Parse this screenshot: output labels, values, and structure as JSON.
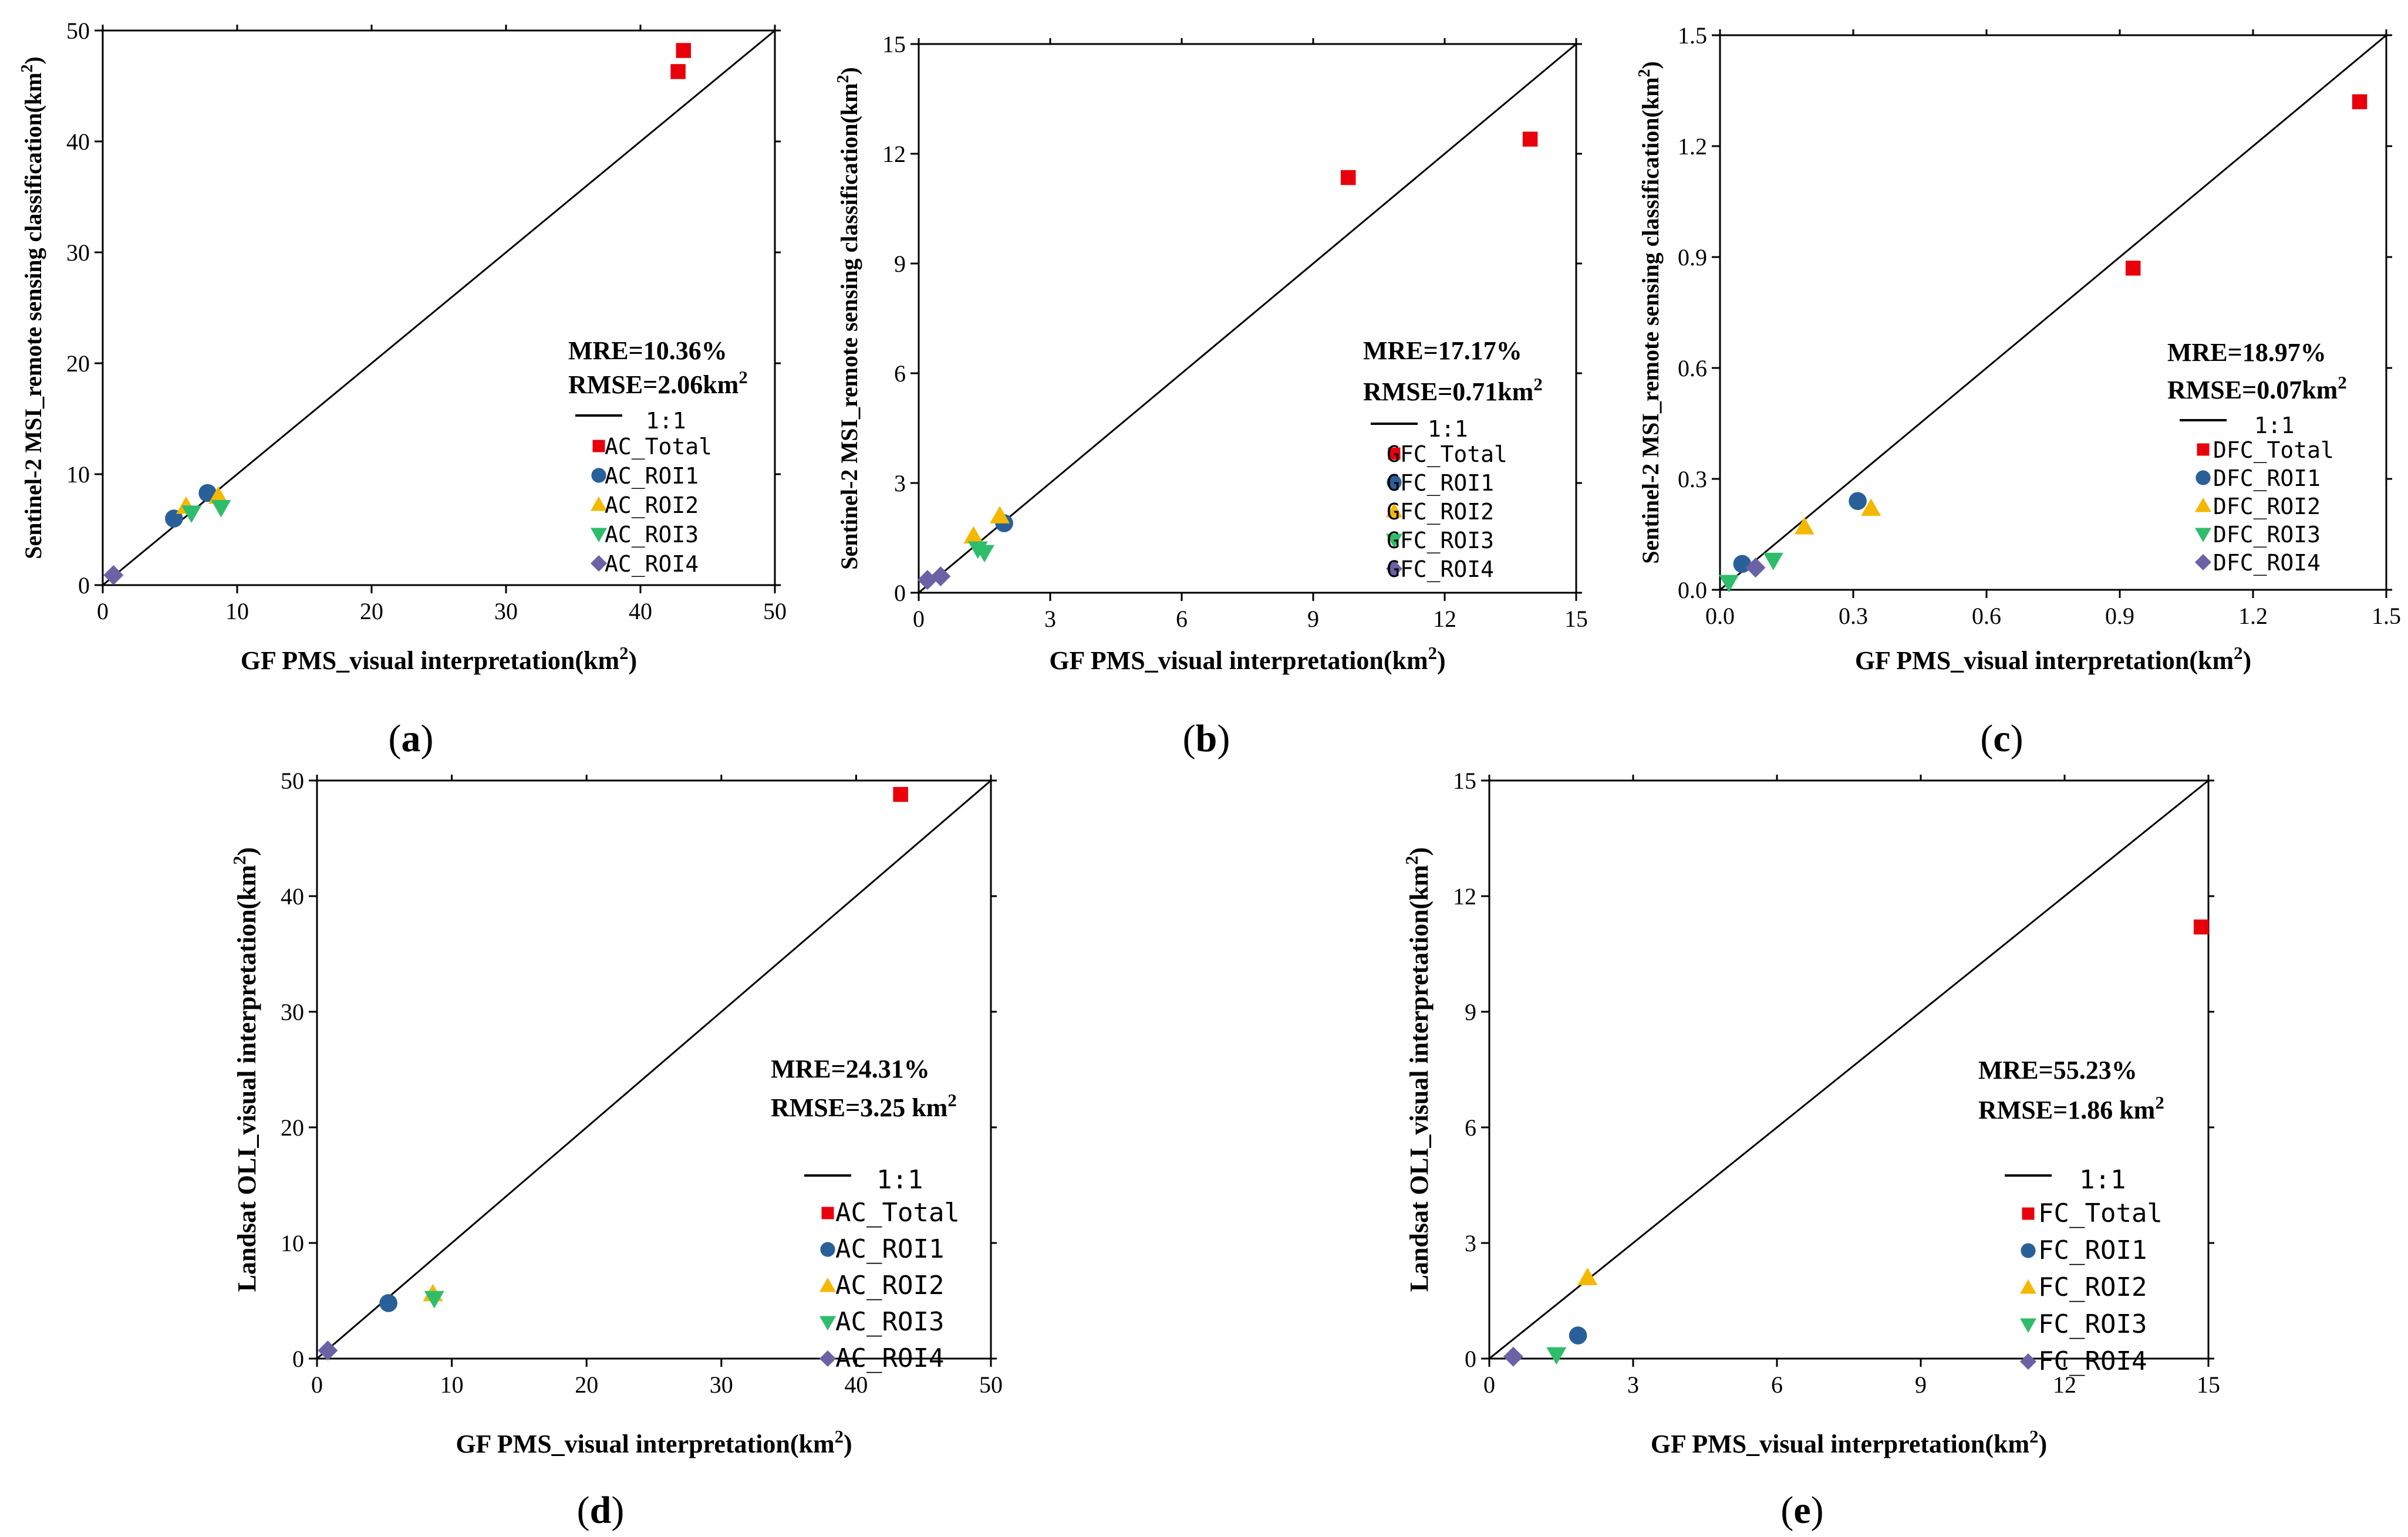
{
  "chart_data": [
    {
      "id": "a",
      "panel_label": "a",
      "type": "scatter",
      "xlabel": "GF PMS_visual interpretation(km²)",
      "ylabel": "Sentinel-2 MSI_remote sensing classification(km²)",
      "xlim": [
        0,
        50
      ],
      "ylim": [
        0,
        50
      ],
      "xticks": [
        "0",
        "10",
        "20",
        "30",
        "40",
        "50"
      ],
      "yticks": [
        "0",
        "10",
        "20",
        "30",
        "40",
        "50"
      ],
      "mre": "MRE=10.36%",
      "rmse": "RMSE=2.06km²",
      "line_label": "1:1",
      "series": [
        {
          "name": "AC_Total",
          "marker": "square",
          "color": "#e8000b",
          "points": [
            [
              43.2,
              48.2
            ],
            [
              42.8,
              46.3
            ]
          ]
        },
        {
          "name": "AC_ROI1",
          "marker": "circle",
          "color": "#2a6099",
          "points": [
            [
              5.3,
              6.0
            ],
            [
              7.8,
              8.3
            ]
          ]
        },
        {
          "name": "AC_ROI2",
          "marker": "triangle-up",
          "color": "#f5b800",
          "points": [
            [
              6.2,
              7.1
            ],
            [
              8.6,
              8.0
            ]
          ]
        },
        {
          "name": "AC_ROI3",
          "marker": "triangle-down",
          "color": "#2ebd6b",
          "points": [
            [
              6.6,
              6.5
            ],
            [
              8.8,
              7.0
            ]
          ]
        },
        {
          "name": "AC_ROI4",
          "marker": "diamond",
          "color": "#6b62a6",
          "points": [
            [
              0.8,
              0.9
            ]
          ]
        }
      ]
    },
    {
      "id": "b",
      "panel_label": "b",
      "type": "scatter",
      "xlabel": "GF PMS_visual interpretation(km²)",
      "ylabel": "Sentinel-2 MSI_remote sensing classification(km²)",
      "xlim": [
        0,
        15
      ],
      "ylim": [
        0,
        15
      ],
      "xticks": [
        "0",
        "3",
        "6",
        "9",
        "12",
        "15"
      ],
      "yticks": [
        "0",
        "3",
        "6",
        "9",
        "12",
        "15"
      ],
      "mre": "MRE=17.17%",
      "rmse": "RMSE=0.71km²",
      "line_label": "1:1",
      "series": [
        {
          "name": "GFC_Total",
          "marker": "square",
          "color": "#e8000b",
          "points": [
            [
              9.8,
              11.35
            ],
            [
              13.95,
              12.4
            ]
          ]
        },
        {
          "name": "GFC_ROI1",
          "marker": "circle",
          "color": "#2a6099",
          "points": [
            [
              1.95,
              1.9
            ]
          ]
        },
        {
          "name": "GFC_ROI2",
          "marker": "triangle-up",
          "color": "#f5b800",
          "points": [
            [
              1.25,
              1.55
            ],
            [
              1.85,
              2.1
            ]
          ]
        },
        {
          "name": "GFC_ROI3",
          "marker": "triangle-down",
          "color": "#2ebd6b",
          "points": [
            [
              1.35,
              1.2
            ],
            [
              1.5,
              1.1
            ]
          ]
        },
        {
          "name": "GFC_ROI4",
          "marker": "diamond",
          "color": "#6b62a6",
          "points": [
            [
              0.2,
              0.35
            ],
            [
              0.5,
              0.45
            ]
          ]
        }
      ]
    },
    {
      "id": "c",
      "panel_label": "c",
      "type": "scatter",
      "xlabel": "GF PMS_visual interpretation(km²)",
      "ylabel": "Sentinel-2 MSI_remote sensing classification(km²)",
      "xlim": [
        0,
        1.5
      ],
      "ylim": [
        0,
        1.5
      ],
      "xticks": [
        "0.0",
        "0.3",
        "0.6",
        "0.9",
        "1.2",
        "1.5"
      ],
      "yticks": [
        "0.0",
        "0.3",
        "0.6",
        "0.9",
        "1.2",
        "1.5"
      ],
      "mre": "MRE=18.97%",
      "rmse": "RMSE=0.07km²",
      "line_label": "1:1",
      "series": [
        {
          "name": "DFC_Total",
          "marker": "square",
          "color": "#e8000b",
          "points": [
            [
              0.93,
              0.87
            ],
            [
              1.44,
              1.32
            ]
          ]
        },
        {
          "name": "DFC_ROI1",
          "marker": "circle",
          "color": "#2a6099",
          "points": [
            [
              0.05,
              0.07
            ],
            [
              0.31,
              0.24
            ]
          ]
        },
        {
          "name": "DFC_ROI2",
          "marker": "triangle-up",
          "color": "#f5b800",
          "points": [
            [
              0.19,
              0.17
            ],
            [
              0.34,
              0.22
            ]
          ]
        },
        {
          "name": "DFC_ROI3",
          "marker": "triangle-down",
          "color": "#2ebd6b",
          "points": [
            [
              0.02,
              0.02
            ],
            [
              0.12,
              0.08
            ]
          ]
        },
        {
          "name": "DFC_ROI4",
          "marker": "diamond",
          "color": "#6b62a6",
          "points": [
            [
              0.08,
              0.06
            ]
          ]
        }
      ]
    },
    {
      "id": "d",
      "panel_label": "d",
      "type": "scatter",
      "xlabel": "GF PMS_visual interpretation(km²)",
      "ylabel": "Landsat OLI_visual interpretation(km²)",
      "xlim": [
        0,
        50
      ],
      "ylim": [
        0,
        50
      ],
      "xticks": [
        "0",
        "10",
        "20",
        "30",
        "40",
        "50"
      ],
      "yticks": [
        "0",
        "10",
        "20",
        "30",
        "40",
        "50"
      ],
      "mre": "MRE=24.31%",
      "rmse": "RMSE=3.25 km²",
      "line_label": "1:1",
      "series": [
        {
          "name": "AC_Total",
          "marker": "square",
          "color": "#e8000b",
          "points": [
            [
              43.3,
              48.8
            ]
          ]
        },
        {
          "name": "AC_ROI1",
          "marker": "circle",
          "color": "#2a6099",
          "points": [
            [
              5.3,
              4.8
            ]
          ]
        },
        {
          "name": "AC_ROI2",
          "marker": "triangle-up",
          "color": "#f5b800",
          "points": [
            [
              8.6,
              5.6
            ]
          ]
        },
        {
          "name": "AC_ROI3",
          "marker": "triangle-down",
          "color": "#2ebd6b",
          "points": [
            [
              8.7,
              5.2
            ]
          ]
        },
        {
          "name": "AC_ROI4",
          "marker": "diamond",
          "color": "#6b62a6",
          "points": [
            [
              0.8,
              0.7
            ]
          ]
        }
      ]
    },
    {
      "id": "e",
      "panel_label": "e",
      "type": "scatter",
      "xlabel": "GF PMS_visual interpretation(km²)",
      "ylabel": "Landsat OLI_visual interpretation(km²)",
      "xlim": [
        0,
        15
      ],
      "ylim": [
        0,
        15
      ],
      "xticks": [
        "0",
        "3",
        "6",
        "9",
        "12",
        "15"
      ],
      "yticks": [
        "0",
        "3",
        "6",
        "9",
        "12",
        "15"
      ],
      "mre": "MRE=55.23%",
      "rmse": "RMSE=1.86 km²",
      "line_label": "1:1",
      "series": [
        {
          "name": "FC_Total",
          "marker": "square",
          "color": "#e8000b",
          "points": [
            [
              14.85,
              11.2
            ]
          ]
        },
        {
          "name": "FC_ROI1",
          "marker": "circle",
          "color": "#2a6099",
          "points": [
            [
              1.85,
              0.6
            ]
          ]
        },
        {
          "name": "FC_ROI2",
          "marker": "triangle-up",
          "color": "#f5b800",
          "points": [
            [
              2.05,
              2.1
            ]
          ]
        },
        {
          "name": "FC_ROI3",
          "marker": "triangle-down",
          "color": "#2ebd6b",
          "points": [
            [
              1.4,
              0.1
            ]
          ]
        },
        {
          "name": "FC_ROI4",
          "marker": "diamond",
          "color": "#6b62a6",
          "points": [
            [
              0.5,
              0.05
            ]
          ]
        }
      ]
    }
  ]
}
